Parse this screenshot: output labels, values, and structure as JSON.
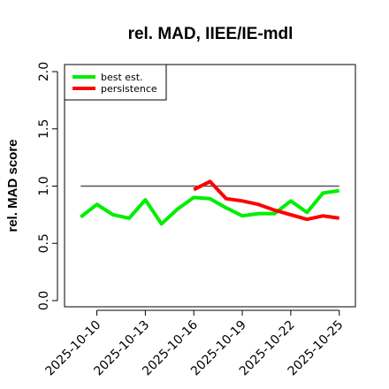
{
  "chart_data": {
    "type": "line",
    "title": "rel. MAD, IIEE/IE-mdl",
    "xlabel": "",
    "ylabel": "rel. MAD score",
    "ylim": [
      0,
      2
    ],
    "xlim": [
      "2025-10-08",
      "2025-10-26"
    ],
    "y_ticks": [
      "0.0",
      "0.5",
      "1.0",
      "1.5",
      "2.0"
    ],
    "x_ticks": [
      "2025-10-10",
      "2025-10-13",
      "2025-10-16",
      "2025-10-19",
      "2025-10-22",
      "2025-10-25"
    ],
    "reference_line": {
      "y": 1.0,
      "from": "2025-10-09",
      "to": "2025-10-25",
      "color": "#555555"
    },
    "legend_position": "top-left",
    "grid": false,
    "series": [
      {
        "name": "best est.",
        "color": "#00ee00",
        "x": [
          "2025-10-09",
          "2025-10-10",
          "2025-10-11",
          "2025-10-12",
          "2025-10-13",
          "2025-10-14",
          "2025-10-15",
          "2025-10-16",
          "2025-10-17",
          "2025-10-18",
          "2025-10-19",
          "2025-10-20",
          "2025-10-21",
          "2025-10-22",
          "2025-10-23",
          "2025-10-24",
          "2025-10-25"
        ],
        "values": [
          0.73,
          0.84,
          0.75,
          0.72,
          0.88,
          0.67,
          0.8,
          0.9,
          0.89,
          0.81,
          0.74,
          0.76,
          0.76,
          0.87,
          0.77,
          0.94,
          0.96
        ]
      },
      {
        "name": "persistence",
        "color": "#ff0000",
        "x": [
          "2025-10-16",
          "2025-10-17",
          "2025-10-18",
          "2025-10-19",
          "2025-10-20",
          "2025-10-21",
          "2025-10-22",
          "2025-10-23",
          "2025-10-24",
          "2025-10-25"
        ],
        "values": [
          0.97,
          1.04,
          0.89,
          0.87,
          0.84,
          0.79,
          0.75,
          0.71,
          0.74,
          0.72
        ]
      }
    ]
  }
}
